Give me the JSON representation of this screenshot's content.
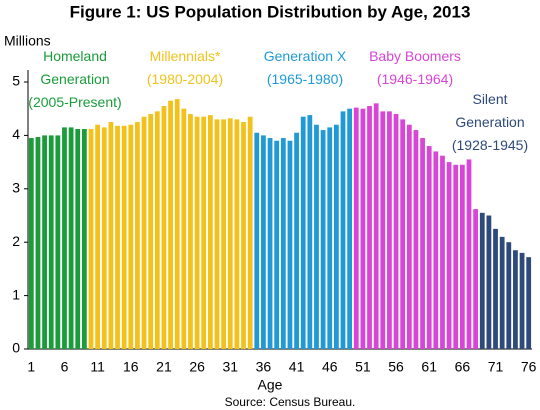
{
  "chart_data": {
    "type": "bar",
    "title": "Figure 1: US Population Distribution by Age, 2013",
    "y_label": "Millions",
    "x_label": "Age",
    "source": "Source: Census Bureau.",
    "categories": [
      1,
      null,
      null,
      null,
      null,
      6,
      null,
      null,
      null,
      null,
      11,
      null,
      null,
      null,
      null,
      16,
      null,
      null,
      null,
      null,
      21,
      null,
      null,
      null,
      null,
      26,
      null,
      null,
      null,
      null,
      31,
      null,
      null,
      null,
      null,
      36,
      null,
      null,
      null,
      null,
      41,
      null,
      null,
      null,
      null,
      46,
      null,
      null,
      null,
      null,
      51,
      null,
      null,
      null,
      null,
      56,
      null,
      null,
      null,
      null,
      61,
      null,
      null,
      null,
      null,
      66,
      null,
      null,
      null,
      null,
      71,
      null,
      null,
      null,
      null,
      76
    ],
    "series": [
      {
        "name": "Homeland Generation",
        "years": "(2005-Present)",
        "color": "#1a9c3a",
        "values": [
          3.95,
          3.97,
          4.0,
          4.0,
          4.0,
          4.15,
          4.15,
          4.12,
          4.12,
          null,
          null,
          null,
          null,
          null,
          null,
          null,
          null,
          null,
          null,
          null,
          null,
          null,
          null,
          null,
          null,
          null,
          null,
          null,
          null,
          null,
          null,
          null,
          null,
          null,
          null,
          null,
          null,
          null,
          null,
          null,
          null,
          null,
          null,
          null,
          null,
          null,
          null,
          null,
          null,
          null,
          null,
          null,
          null,
          null,
          null,
          null,
          null,
          null,
          null,
          null,
          null,
          null,
          null,
          null,
          null,
          null,
          null,
          null,
          null,
          null,
          null,
          null,
          null,
          null,
          null,
          null
        ]
      },
      {
        "name": "Millennials*",
        "years": "(1980-2004)",
        "color": "#f2c21b",
        "values": [
          null,
          null,
          null,
          null,
          null,
          null,
          null,
          null,
          null,
          4.12,
          4.2,
          4.15,
          4.25,
          4.18,
          4.18,
          4.2,
          4.25,
          4.35,
          4.4,
          4.45,
          4.55,
          4.65,
          4.68,
          4.5,
          4.4,
          4.35,
          4.35,
          4.38,
          4.3,
          4.3,
          4.32,
          4.3,
          4.25,
          4.35,
          null,
          null,
          null,
          null,
          null,
          null,
          null,
          null,
          null,
          null,
          null,
          null,
          null,
          null,
          null,
          null,
          null,
          null,
          null,
          null,
          null,
          null,
          null,
          null,
          null,
          null,
          null,
          null,
          null,
          null,
          null,
          null,
          null,
          null,
          null,
          null,
          null,
          null,
          null,
          null,
          null,
          null
        ]
      },
      {
        "name": "Generation X",
        "years": "(1965-1980)",
        "color": "#1f9ad6",
        "values": [
          null,
          null,
          null,
          null,
          null,
          null,
          null,
          null,
          null,
          null,
          null,
          null,
          null,
          null,
          null,
          null,
          null,
          null,
          null,
          null,
          null,
          null,
          null,
          null,
          null,
          null,
          null,
          null,
          null,
          null,
          null,
          null,
          null,
          null,
          4.05,
          4.0,
          3.95,
          3.9,
          3.95,
          3.9,
          4.05,
          4.35,
          4.38,
          4.2,
          4.1,
          4.15,
          4.2,
          4.45,
          4.5,
          null,
          null,
          null,
          null,
          null,
          null,
          null,
          null,
          null,
          null,
          null,
          null,
          null,
          null,
          null,
          null,
          null,
          null,
          null,
          null,
          null,
          null,
          null,
          null,
          null,
          null,
          null
        ]
      },
      {
        "name": "Baby Boomers",
        "years": "(1946-1964)",
        "color": "#d846d8",
        "values": [
          null,
          null,
          null,
          null,
          null,
          null,
          null,
          null,
          null,
          null,
          null,
          null,
          null,
          null,
          null,
          null,
          null,
          null,
          null,
          null,
          null,
          null,
          null,
          null,
          null,
          null,
          null,
          null,
          null,
          null,
          null,
          null,
          null,
          null,
          null,
          null,
          null,
          null,
          null,
          null,
          null,
          null,
          null,
          null,
          null,
          null,
          null,
          null,
          null,
          4.52,
          4.5,
          4.55,
          4.6,
          4.45,
          4.45,
          4.4,
          4.3,
          4.2,
          4.1,
          3.95,
          3.8,
          3.7,
          3.62,
          3.5,
          3.45,
          3.45,
          3.55,
          2.62,
          null,
          null,
          null,
          null,
          null,
          null,
          null,
          null
        ]
      },
      {
        "name": "Silent Generation",
        "years": "(1928-1945)",
        "color": "#2e4a7a",
        "values": [
          null,
          null,
          null,
          null,
          null,
          null,
          null,
          null,
          null,
          null,
          null,
          null,
          null,
          null,
          null,
          null,
          null,
          null,
          null,
          null,
          null,
          null,
          null,
          null,
          null,
          null,
          null,
          null,
          null,
          null,
          null,
          null,
          null,
          null,
          null,
          null,
          null,
          null,
          null,
          null,
          null,
          null,
          null,
          null,
          null,
          null,
          null,
          null,
          null,
          null,
          null,
          null,
          null,
          null,
          null,
          null,
          null,
          null,
          null,
          null,
          null,
          null,
          null,
          null,
          null,
          null,
          null,
          null,
          2.55,
          2.5,
          2.25,
          2.1,
          2.0,
          1.85,
          1.8,
          1.72
        ]
      }
    ],
    "ylim": [
      0,
      5
    ],
    "yticks": [
      0,
      1,
      2,
      3,
      4,
      5
    ],
    "grid": false
  }
}
